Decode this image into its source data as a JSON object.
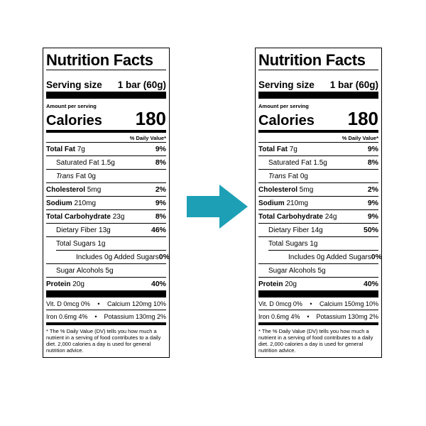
{
  "colors": {
    "arrow": "#1da0b5"
  },
  "labels": [
    {
      "title": "Nutrition Facts",
      "serving_label": "Serving size",
      "serving_value": "1 bar (60g)",
      "amount_per_serving": "Amount per serving",
      "calories_label": "Calories",
      "calories_value": "180",
      "dv_header": "% Daily Value*",
      "total_fat": {
        "label": "Total Fat",
        "amount": "7g",
        "dv": "9%"
      },
      "sat_fat": {
        "label": "Saturated Fat 1.5g",
        "dv": "8%"
      },
      "trans_fat": {
        "label_italic": "Trans",
        "label_rest": " Fat 0g"
      },
      "cholesterol": {
        "label": "Cholesterol",
        "amount": "5mg",
        "dv": "2%"
      },
      "sodium": {
        "label": "Sodium",
        "amount": "210mg",
        "dv": "9%"
      },
      "carbs": {
        "label": "Total Carbohydrate",
        "amount": "23g",
        "dv": "8%"
      },
      "fiber": {
        "label": "Dietary Fiber 13g",
        "dv": "46%"
      },
      "sugars": {
        "label": "Total Sugars 1g"
      },
      "added_sugars": {
        "label": "Includes 0g Added Sugars",
        "dv": "0%"
      },
      "sugar_alcohols": {
        "label": "Sugar Alcohols 5g"
      },
      "protein": {
        "label": "Protein",
        "amount": "20g",
        "dv": "40%"
      },
      "vit_row1": {
        "left": "Vit. D 0mcg 0%",
        "sep": "•",
        "right": "Calcium 120mg 10%"
      },
      "vit_row2": {
        "left": "Iron 0.6mg 4%",
        "sep": "•",
        "right": "Potassium 130mg 2%"
      },
      "footnote": "* The % Daily Value (DV) tells you how much a nutrient in a serving of food contributes to a daily diet. 2,000 calories a day is used for general nutrition advice."
    },
    {
      "title": "Nutrition Facts",
      "serving_label": "Serving size",
      "serving_value": "1 bar (60g)",
      "amount_per_serving": "Amount per serving",
      "calories_label": "Calories",
      "calories_value": "180",
      "dv_header": "% Daily Value*",
      "total_fat": {
        "label": "Total Fat",
        "amount": "7g",
        "dv": "9%"
      },
      "sat_fat": {
        "label": "Saturated Fat 1.5g",
        "dv": "8%"
      },
      "trans_fat": {
        "label_italic": "Trans",
        "label_rest": " Fat 0g"
      },
      "cholesterol": {
        "label": "Cholesterol",
        "amount": "5mg",
        "dv": "2%"
      },
      "sodium": {
        "label": "Sodium",
        "amount": "210mg",
        "dv": "9%"
      },
      "carbs": {
        "label": "Total Carbohydrate",
        "amount": "24g",
        "dv": "9%"
      },
      "fiber": {
        "label": "Dietary Fiber 14g",
        "dv": "50%"
      },
      "sugars": {
        "label": "Total Sugars 1g"
      },
      "added_sugars": {
        "label": "Includes 0g Added Sugars",
        "dv": "0%"
      },
      "sugar_alcohols": {
        "label": "Sugar Alcohols 5g"
      },
      "protein": {
        "label": "Protein",
        "amount": "20g",
        "dv": "40%"
      },
      "vit_row1": {
        "left": "Vit. D 0mcg 0%",
        "sep": "•",
        "right": "Calcium 150mg 10%"
      },
      "vit_row2": {
        "left": "Iron 0.6mg 4%",
        "sep": "•",
        "right": "Potassium 130mg 2%"
      },
      "footnote": "* The % Daily Value (DV) tells you how much a nutrient in a serving of food contributes to a daily diet. 2,000 calories a day is used for general nutrition advice."
    }
  ]
}
